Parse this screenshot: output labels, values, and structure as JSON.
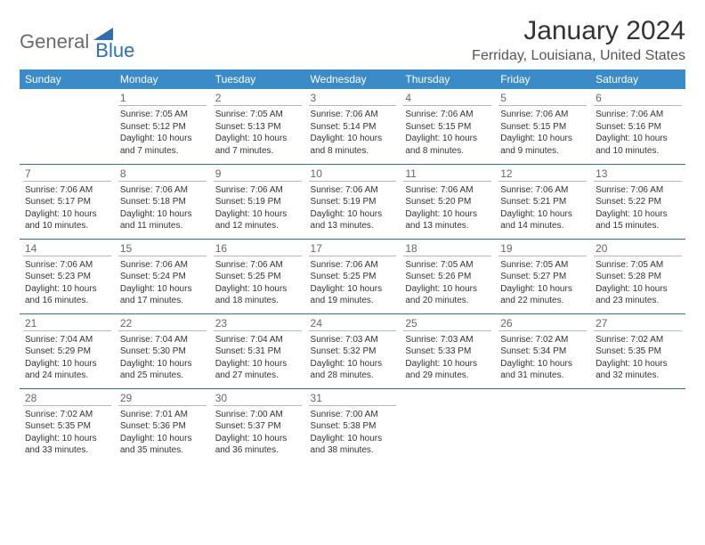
{
  "logo": {
    "part1": "General",
    "part2": "Blue"
  },
  "title": "January 2024",
  "location": "Ferriday, Louisiana, United States",
  "colors": {
    "header_bg": "#3b8bc9",
    "header_text": "#ffffff",
    "border": "#2f6fb0",
    "daynum_border": "#b8b8b8",
    "title_color": "#333333",
    "location_color": "#555555",
    "logo_gray": "#6a6a6a",
    "logo_blue": "#2f6fb0"
  },
  "weekdays": [
    "Sunday",
    "Monday",
    "Tuesday",
    "Wednesday",
    "Thursday",
    "Friday",
    "Saturday"
  ],
  "weeks": [
    [
      null,
      {
        "n": "1",
        "sr": "7:05 AM",
        "ss": "5:12 PM",
        "dl": "10 hours and 7 minutes."
      },
      {
        "n": "2",
        "sr": "7:05 AM",
        "ss": "5:13 PM",
        "dl": "10 hours and 7 minutes."
      },
      {
        "n": "3",
        "sr": "7:06 AM",
        "ss": "5:14 PM",
        "dl": "10 hours and 8 minutes."
      },
      {
        "n": "4",
        "sr": "7:06 AM",
        "ss": "5:15 PM",
        "dl": "10 hours and 8 minutes."
      },
      {
        "n": "5",
        "sr": "7:06 AM",
        "ss": "5:15 PM",
        "dl": "10 hours and 9 minutes."
      },
      {
        "n": "6",
        "sr": "7:06 AM",
        "ss": "5:16 PM",
        "dl": "10 hours and 10 minutes."
      }
    ],
    [
      {
        "n": "7",
        "sr": "7:06 AM",
        "ss": "5:17 PM",
        "dl": "10 hours and 10 minutes."
      },
      {
        "n": "8",
        "sr": "7:06 AM",
        "ss": "5:18 PM",
        "dl": "10 hours and 11 minutes."
      },
      {
        "n": "9",
        "sr": "7:06 AM",
        "ss": "5:19 PM",
        "dl": "10 hours and 12 minutes."
      },
      {
        "n": "10",
        "sr": "7:06 AM",
        "ss": "5:19 PM",
        "dl": "10 hours and 13 minutes."
      },
      {
        "n": "11",
        "sr": "7:06 AM",
        "ss": "5:20 PM",
        "dl": "10 hours and 13 minutes."
      },
      {
        "n": "12",
        "sr": "7:06 AM",
        "ss": "5:21 PM",
        "dl": "10 hours and 14 minutes."
      },
      {
        "n": "13",
        "sr": "7:06 AM",
        "ss": "5:22 PM",
        "dl": "10 hours and 15 minutes."
      }
    ],
    [
      {
        "n": "14",
        "sr": "7:06 AM",
        "ss": "5:23 PM",
        "dl": "10 hours and 16 minutes."
      },
      {
        "n": "15",
        "sr": "7:06 AM",
        "ss": "5:24 PM",
        "dl": "10 hours and 17 minutes."
      },
      {
        "n": "16",
        "sr": "7:06 AM",
        "ss": "5:25 PM",
        "dl": "10 hours and 18 minutes."
      },
      {
        "n": "17",
        "sr": "7:06 AM",
        "ss": "5:25 PM",
        "dl": "10 hours and 19 minutes."
      },
      {
        "n": "18",
        "sr": "7:05 AM",
        "ss": "5:26 PM",
        "dl": "10 hours and 20 minutes."
      },
      {
        "n": "19",
        "sr": "7:05 AM",
        "ss": "5:27 PM",
        "dl": "10 hours and 22 minutes."
      },
      {
        "n": "20",
        "sr": "7:05 AM",
        "ss": "5:28 PM",
        "dl": "10 hours and 23 minutes."
      }
    ],
    [
      {
        "n": "21",
        "sr": "7:04 AM",
        "ss": "5:29 PM",
        "dl": "10 hours and 24 minutes."
      },
      {
        "n": "22",
        "sr": "7:04 AM",
        "ss": "5:30 PM",
        "dl": "10 hours and 25 minutes."
      },
      {
        "n": "23",
        "sr": "7:04 AM",
        "ss": "5:31 PM",
        "dl": "10 hours and 27 minutes."
      },
      {
        "n": "24",
        "sr": "7:03 AM",
        "ss": "5:32 PM",
        "dl": "10 hours and 28 minutes."
      },
      {
        "n": "25",
        "sr": "7:03 AM",
        "ss": "5:33 PM",
        "dl": "10 hours and 29 minutes."
      },
      {
        "n": "26",
        "sr": "7:02 AM",
        "ss": "5:34 PM",
        "dl": "10 hours and 31 minutes."
      },
      {
        "n": "27",
        "sr": "7:02 AM",
        "ss": "5:35 PM",
        "dl": "10 hours and 32 minutes."
      }
    ],
    [
      {
        "n": "28",
        "sr": "7:02 AM",
        "ss": "5:35 PM",
        "dl": "10 hours and 33 minutes."
      },
      {
        "n": "29",
        "sr": "7:01 AM",
        "ss": "5:36 PM",
        "dl": "10 hours and 35 minutes."
      },
      {
        "n": "30",
        "sr": "7:00 AM",
        "ss": "5:37 PM",
        "dl": "10 hours and 36 minutes."
      },
      {
        "n": "31",
        "sr": "7:00 AM",
        "ss": "5:38 PM",
        "dl": "10 hours and 38 minutes."
      },
      null,
      null,
      null
    ]
  ],
  "labels": {
    "sunrise": "Sunrise:",
    "sunset": "Sunset:",
    "daylight": "Daylight:"
  }
}
